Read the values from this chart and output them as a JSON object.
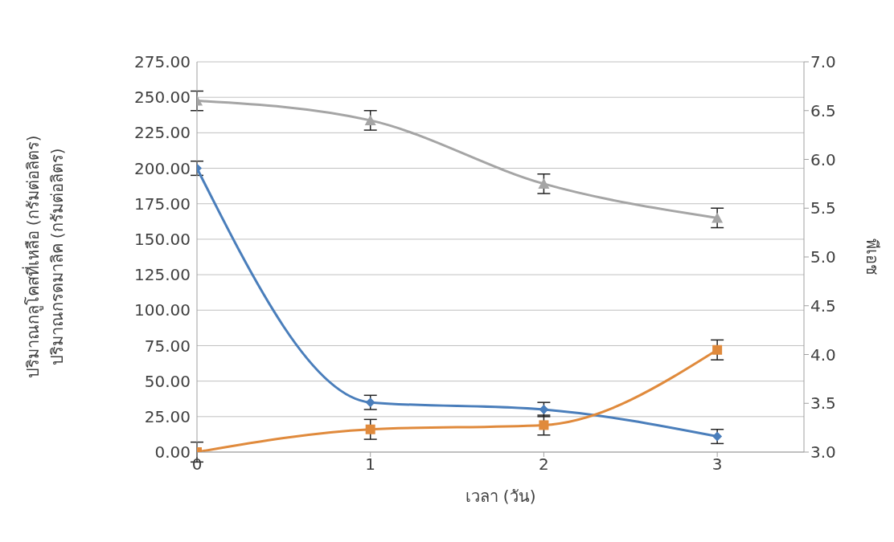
{
  "chart_data": {
    "type": "line",
    "xlabel": "เวลา (วัน)",
    "ylabel": "ปริมาณกลูโคสที่เหลือ (กรัมต่อลิตร)\nปริมาณกรดมาลิค (กรัมต่อลิตร)",
    "y2label": "พีเอช",
    "x": [
      0,
      1,
      2,
      3
    ],
    "xlim": [
      0,
      3.5
    ],
    "xticks": [
      0,
      1,
      2,
      3
    ],
    "ylim": [
      0,
      275
    ],
    "yticks": [
      {
        "value": 0,
        "label": "0.00"
      },
      {
        "value": 25,
        "label": "25.00"
      },
      {
        "value": 50,
        "label": "50.00"
      },
      {
        "value": 75,
        "label": "75.00"
      },
      {
        "value": 100,
        "label": "100.00"
      },
      {
        "value": 125,
        "label": "125.00"
      },
      {
        "value": 150,
        "label": "150.00"
      },
      {
        "value": 175,
        "label": "175.00"
      },
      {
        "value": 200,
        "label": "200.00"
      },
      {
        "value": 225,
        "label": "225.00"
      },
      {
        "value": 250,
        "label": "250.00"
      },
      {
        "value": 275,
        "label": "275.00"
      }
    ],
    "y2lim": [
      3,
      7
    ],
    "y2ticks": [
      {
        "value": 3,
        "label": "3.0"
      },
      {
        "value": 3.5,
        "label": "3.5"
      },
      {
        "value": 4,
        "label": "4.0"
      },
      {
        "value": 4.5,
        "label": "4.5"
      },
      {
        "value": 5,
        "label": "5.0"
      },
      {
        "value": 5.5,
        "label": "5.5"
      },
      {
        "value": 6,
        "label": "6.0"
      },
      {
        "value": 6.5,
        "label": "6.5"
      },
      {
        "value": 7,
        "label": "7.0"
      }
    ],
    "grid": "y",
    "legend": false,
    "series": [
      {
        "color": "#4a7ebb",
        "marker": "diamond",
        "values": [
          200,
          35,
          30,
          11
        ],
        "errors": [
          5,
          5,
          5,
          5
        ]
      },
      {
        "color": "#e08a3c",
        "marker": "square",
        "values": [
          0,
          16,
          19,
          72
        ],
        "errors": [
          7,
          7,
          7,
          7
        ]
      },
      {
        "color": "#a5a5a5",
        "marker": "triangle",
        "axis": "y2",
        "values": [
          6.6,
          6.4,
          5.75,
          5.4
        ],
        "errors": [
          0.1,
          0.1,
          0.1,
          0.1
        ]
      }
    ]
  }
}
